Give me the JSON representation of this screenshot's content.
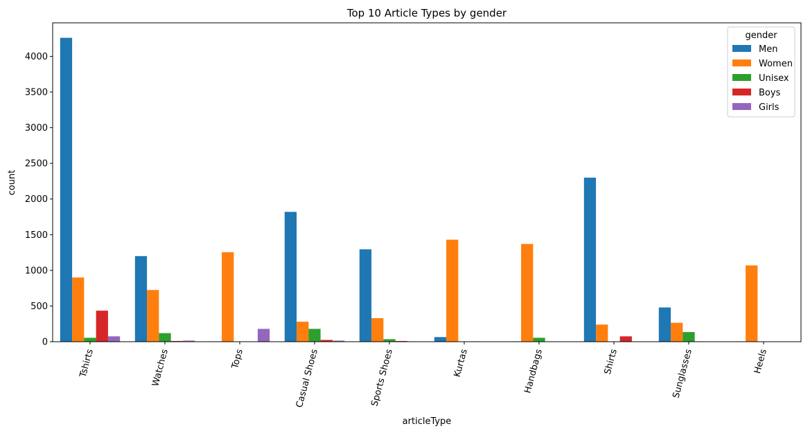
{
  "chart_data": {
    "type": "bar",
    "title": "Top 10 Article Types by gender",
    "xlabel": "articleType",
    "ylabel": "count",
    "categories": [
      "Tshirts",
      "Watches",
      "Tops",
      "Casual Shoes",
      "Sports Shoes",
      "Kurtas",
      "Handbags",
      "Shirts",
      "Sunglasses",
      "Heels"
    ],
    "series": [
      {
        "name": "Men",
        "color": "#1f77b4",
        "values": [
          4260,
          1200,
          5,
          1820,
          1295,
          65,
          5,
          2300,
          480,
          5
        ]
      },
      {
        "name": "Women",
        "color": "#ff7f0e",
        "values": [
          900,
          725,
          1255,
          280,
          330,
          1430,
          1370,
          240,
          265,
          1070
        ]
      },
      {
        "name": "Unisex",
        "color": "#2ca02c",
        "values": [
          55,
          120,
          0,
          180,
          35,
          0,
          55,
          0,
          135,
          0
        ]
      },
      {
        "name": "Boys",
        "color": "#d62728",
        "values": [
          435,
          10,
          0,
          25,
          10,
          5,
          0,
          75,
          5,
          0
        ]
      },
      {
        "name": "Girls",
        "color": "#9467bd",
        "values": [
          75,
          15,
          180,
          15,
          5,
          0,
          0,
          0,
          0,
          0
        ]
      }
    ],
    "ylim": [
      0,
      4470
    ],
    "yticks": [
      0,
      500,
      1000,
      1500,
      2000,
      2500,
      3000,
      3500,
      4000
    ],
    "x_tick_rotation": -75,
    "grid": false,
    "legend": {
      "title": "gender",
      "placement": "top-right"
    }
  }
}
